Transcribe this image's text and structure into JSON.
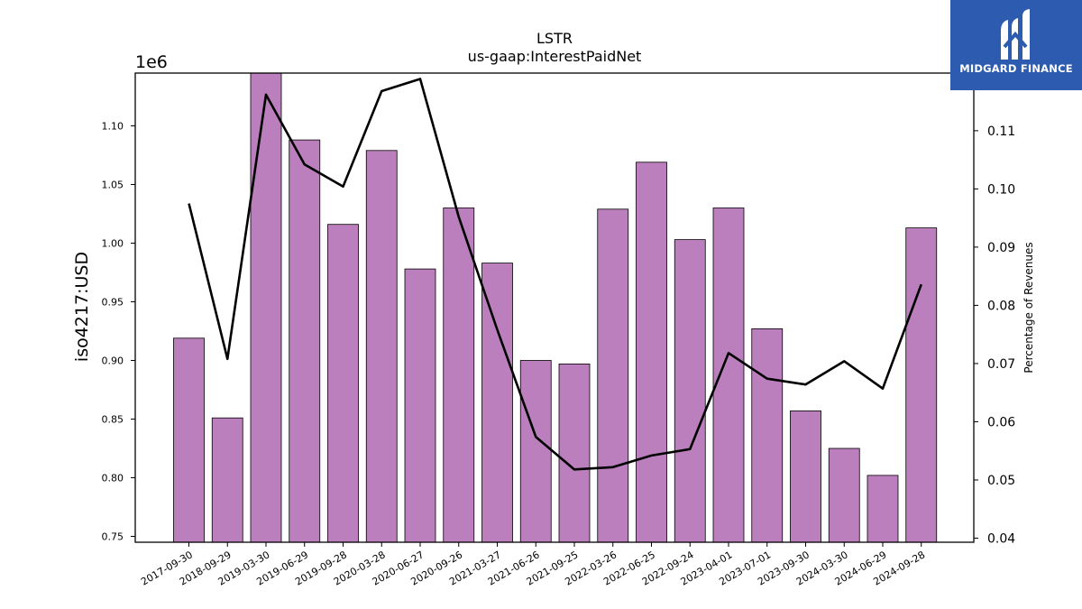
{
  "logo": {
    "text": "MIDGARD FINANCE",
    "bg_color": "#2d5bb0"
  },
  "chart_data": {
    "type": "bar",
    "title": "LSTR",
    "subtitle": "us-gaap:InterestPaidNet",
    "ylabel": "iso4217:USD",
    "y_offset_label": "1e6",
    "y2label": "Percentage of Revenues",
    "ylim": [
      0.745,
      1.145
    ],
    "y2lim": [
      0.0393,
      0.1199
    ],
    "yticks": [
      "0.75",
      "0.80",
      "0.85",
      "0.90",
      "0.95",
      "1.00",
      "1.05",
      "1.10"
    ],
    "y2ticks": [
      "0.04",
      "0.05",
      "0.06",
      "0.07",
      "0.08",
      "0.09",
      "0.10",
      "0.11"
    ],
    "bar_color": "#bb7fbd",
    "line_color": "#000000",
    "categories": [
      "2017-09-30",
      "2018-09-29",
      "2019-03-30",
      "2019-06-29",
      "2019-09-28",
      "2020-03-28",
      "2020-06-27",
      "2020-09-26",
      "2021-03-27",
      "2021-06-26",
      "2021-09-25",
      "2022-03-26",
      "2022-06-25",
      "2022-09-24",
      "2023-04-01",
      "2023-07-01",
      "2023-09-30",
      "2024-03-30",
      "2024-06-29",
      "2024-09-28"
    ],
    "series": [
      {
        "axis": "left",
        "type": "bar",
        "values": [
          0.919,
          0.851,
          1.145,
          1.088,
          1.016,
          1.079,
          0.978,
          1.03,
          0.983,
          0.9,
          0.897,
          1.029,
          1.069,
          1.003,
          1.03,
          0.927,
          0.857,
          0.825,
          0.802,
          1.013
        ]
      },
      {
        "axis": "right",
        "type": "line",
        "values": [
          0.0975,
          0.0708,
          0.1162,
          0.1042,
          0.1004,
          0.1168,
          0.1189,
          0.0952,
          0.0758,
          0.0574,
          0.0518,
          0.0522,
          0.0542,
          0.0553,
          0.0718,
          0.0674,
          0.0664,
          0.0704,
          0.0657,
          0.0836
        ]
      }
    ]
  }
}
